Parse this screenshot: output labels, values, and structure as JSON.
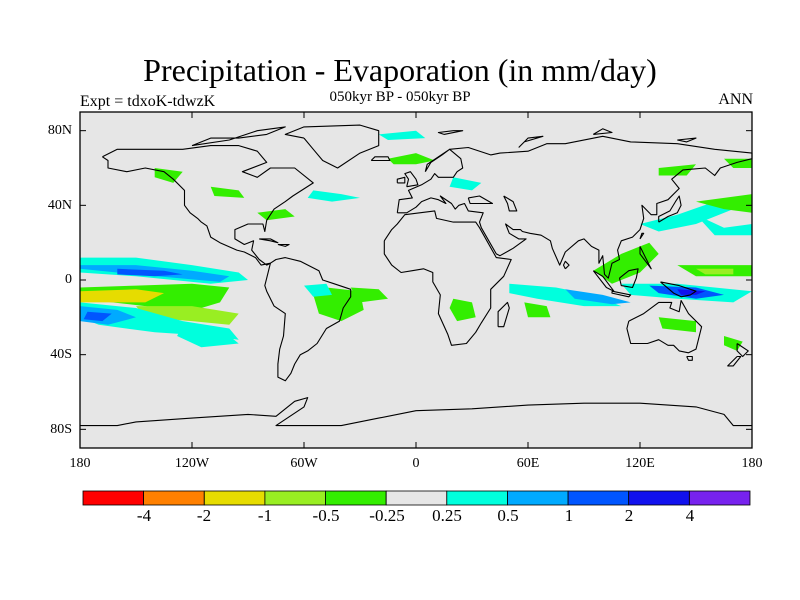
{
  "figure": {
    "title": "Precipitation - Evaporation (in mm/day)",
    "subtitle": "050kyr BP - 050kyr BP",
    "left_label": "Expt = tdxoK-tdwzK",
    "right_label": "ANN"
  },
  "map": {
    "projection": "cylindrical-equidistant",
    "lon_range": [
      -180,
      180
    ],
    "lat_range": [
      -90,
      90
    ],
    "background_color": "#e6e6e6",
    "coastline_color": "#000000",
    "lat_ticks": [
      "80N",
      "40N",
      "0",
      "40S",
      "80S"
    ],
    "lon_ticks": [
      "180",
      "120W",
      "60W",
      "0",
      "60E",
      "120E",
      "180"
    ]
  },
  "colorbar": {
    "labels": [
      "-4",
      "-2",
      "-1",
      "-0.5",
      "-0.25",
      "0.25",
      "0.5",
      "1",
      "2",
      "4"
    ],
    "colors": [
      "#ff0000",
      "#ff8000",
      "#e6dc00",
      "#99ee22",
      "#33ee00",
      "#e6e6e6",
      "#00ffdd",
      "#00aaff",
      "#0055ff",
      "#1111ee",
      "#7722ee"
    ]
  }
}
